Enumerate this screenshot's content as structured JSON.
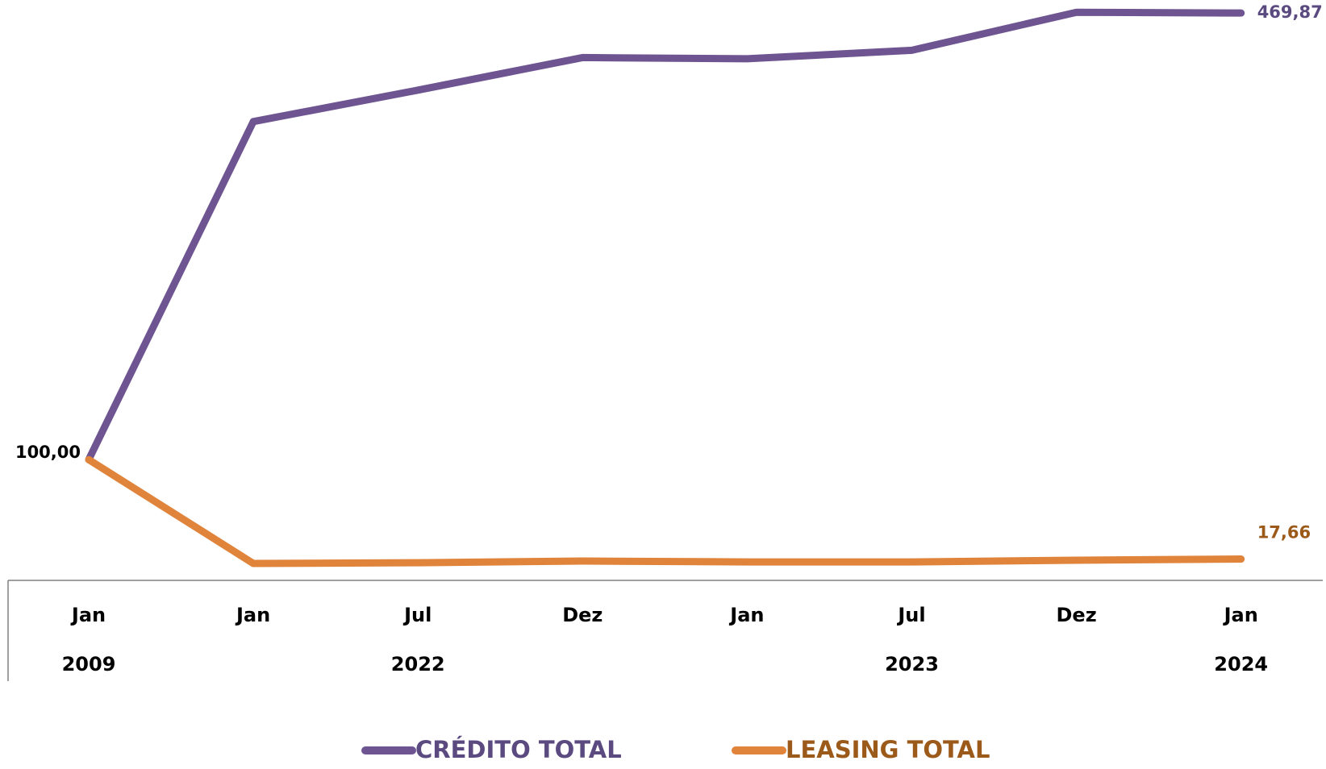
{
  "chart_data": {
    "type": "line",
    "categories": [
      "Jan",
      "Jan",
      "Jul",
      "Dez",
      "Jan",
      "Jul",
      "Dez",
      "Jan"
    ],
    "years": [
      "2009",
      null,
      "2022",
      null,
      null,
      "2023",
      null,
      "2024"
    ],
    "series": [
      {
        "name": "CRÉDITO TOTAL",
        "color": "#6e5591",
        "label_color": "#5a4a80",
        "values": [
          100.0,
          380,
          406,
          433,
          432,
          439,
          470.5,
          469.87
        ],
        "value_labels": [
          "100,00",
          null,
          null,
          null,
          null,
          null,
          null,
          "469,87"
        ]
      },
      {
        "name": "LEASING TOTAL",
        "color": "#e0843c",
        "label_color": "#9c5a1a",
        "values": [
          100.0,
          14,
          14.6,
          16,
          15.3,
          15.3,
          16.7,
          17.66
        ],
        "value_labels": [
          null,
          null,
          null,
          null,
          null,
          null,
          null,
          "17,66"
        ]
      }
    ],
    "ylim": [
      0,
      480
    ]
  }
}
